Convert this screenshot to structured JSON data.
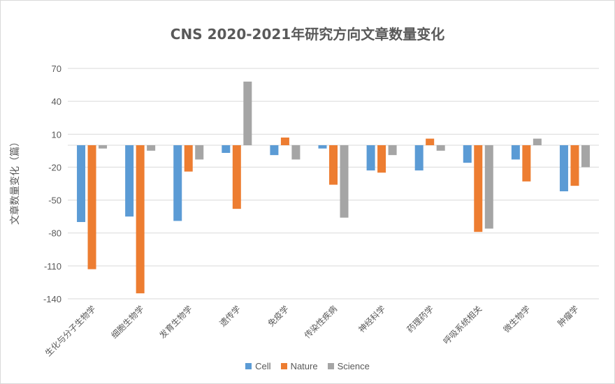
{
  "chart_data": {
    "type": "bar",
    "title": "CNS 2020-2021年研究方向文章数量变化",
    "ylabel": "文章数量变化（篇）",
    "xlabel": "",
    "ylim": [
      -140,
      70
    ],
    "yticks": [
      70,
      40,
      10,
      -20,
      -50,
      -80,
      -110,
      -140
    ],
    "grid": true,
    "legend_position": "bottom",
    "categories": [
      "生化与分子生物学",
      "细胞生物学",
      "发育生物学",
      "遗传学",
      "免疫学",
      "传染性疾病",
      "神经科学",
      "药理药学",
      "呼吸系统相关",
      "微生物学",
      "肿瘤学"
    ],
    "series": [
      {
        "name": "Cell",
        "color": "#5b9bd5",
        "values": [
          -70,
          -65,
          -69,
          -7,
          -9,
          -3,
          -23,
          -23,
          -16,
          -13,
          -42
        ]
      },
      {
        "name": "Nature",
        "color": "#ed7d31",
        "values": [
          -113,
          -135,
          -24,
          -58,
          7,
          -36,
          -25,
          6,
          -79,
          -33,
          -37
        ]
      },
      {
        "name": "Science",
        "color": "#a5a5a5",
        "values": [
          -3,
          -5,
          -13,
          58,
          -13,
          -66,
          -9,
          -5,
          -76,
          6,
          -20
        ]
      }
    ]
  }
}
